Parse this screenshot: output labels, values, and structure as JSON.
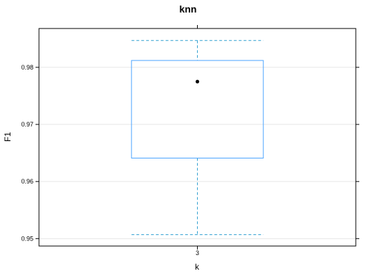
{
  "chart_data": {
    "type": "box",
    "title": "knn",
    "xlabel": "k",
    "ylabel": "F1",
    "categories": [
      "3"
    ],
    "y_ticks": [
      0.95,
      0.96,
      0.97,
      0.98
    ],
    "y_tick_labels": [
      "0.95",
      "0.96",
      "0.97",
      "0.98"
    ],
    "ylim": [
      0.9487,
      0.9868
    ],
    "grid": "horizontal",
    "boxes": [
      {
        "category": "3",
        "whisker_low": 0.9507,
        "q1": 0.9641,
        "median": 0.9775,
        "q3": 0.9812,
        "whisker_high": 0.9847
      }
    ],
    "colors": {
      "box": "#4aa3ff",
      "whisker": "#2f9fd0",
      "grid": "#e6e6e6",
      "frame": "#000000",
      "median": "#000000"
    }
  }
}
